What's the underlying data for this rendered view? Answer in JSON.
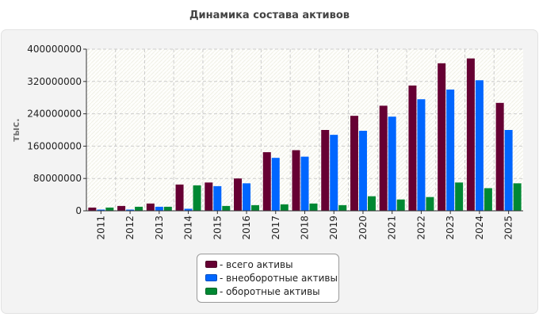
{
  "chart_data": {
    "type": "bar",
    "title": "Динамика состава активов",
    "ylabel": "тыс.",
    "xlabel": "",
    "ylim": [
      0,
      400000000
    ],
    "yticks": [
      "0",
      "80000000",
      "160000000",
      "240000000",
      "320000000",
      "400000000"
    ],
    "ytick_values": [
      0,
      80000000,
      160000000,
      240000000,
      320000000,
      400000000
    ],
    "categories": [
      "2011",
      "2012",
      "2013",
      "2014",
      "2015",
      "2016",
      "2017",
      "2018",
      "2019",
      "2020",
      "2021",
      "2022",
      "2023",
      "2024",
      "2025"
    ],
    "series": [
      {
        "name": "- всего активы",
        "color": "#660033",
        "values": [
          8000000,
          12000000,
          18000000,
          65000000,
          70000000,
          80000000,
          145000000,
          150000000,
          200000000,
          235000000,
          260000000,
          310000000,
          365000000,
          377000000,
          267000000
        ]
      },
      {
        "name": "- внеоборотные активы",
        "color": "#0066ff",
        "values": [
          3000000,
          3000000,
          10000000,
          5000000,
          61000000,
          68000000,
          131000000,
          134000000,
          188000000,
          198000000,
          233000000,
          276000000,
          300000000,
          323000000,
          200000000
        ]
      },
      {
        "name": "- оборотные активы",
        "color": "#008833",
        "values": [
          8000000,
          10000000,
          10000000,
          63000000,
          12000000,
          14000000,
          16000000,
          18000000,
          14000000,
          36000000,
          28000000,
          34000000,
          70000000,
          56000000,
          68000000
        ]
      }
    ],
    "grid": true,
    "legend_position": "bottom"
  }
}
